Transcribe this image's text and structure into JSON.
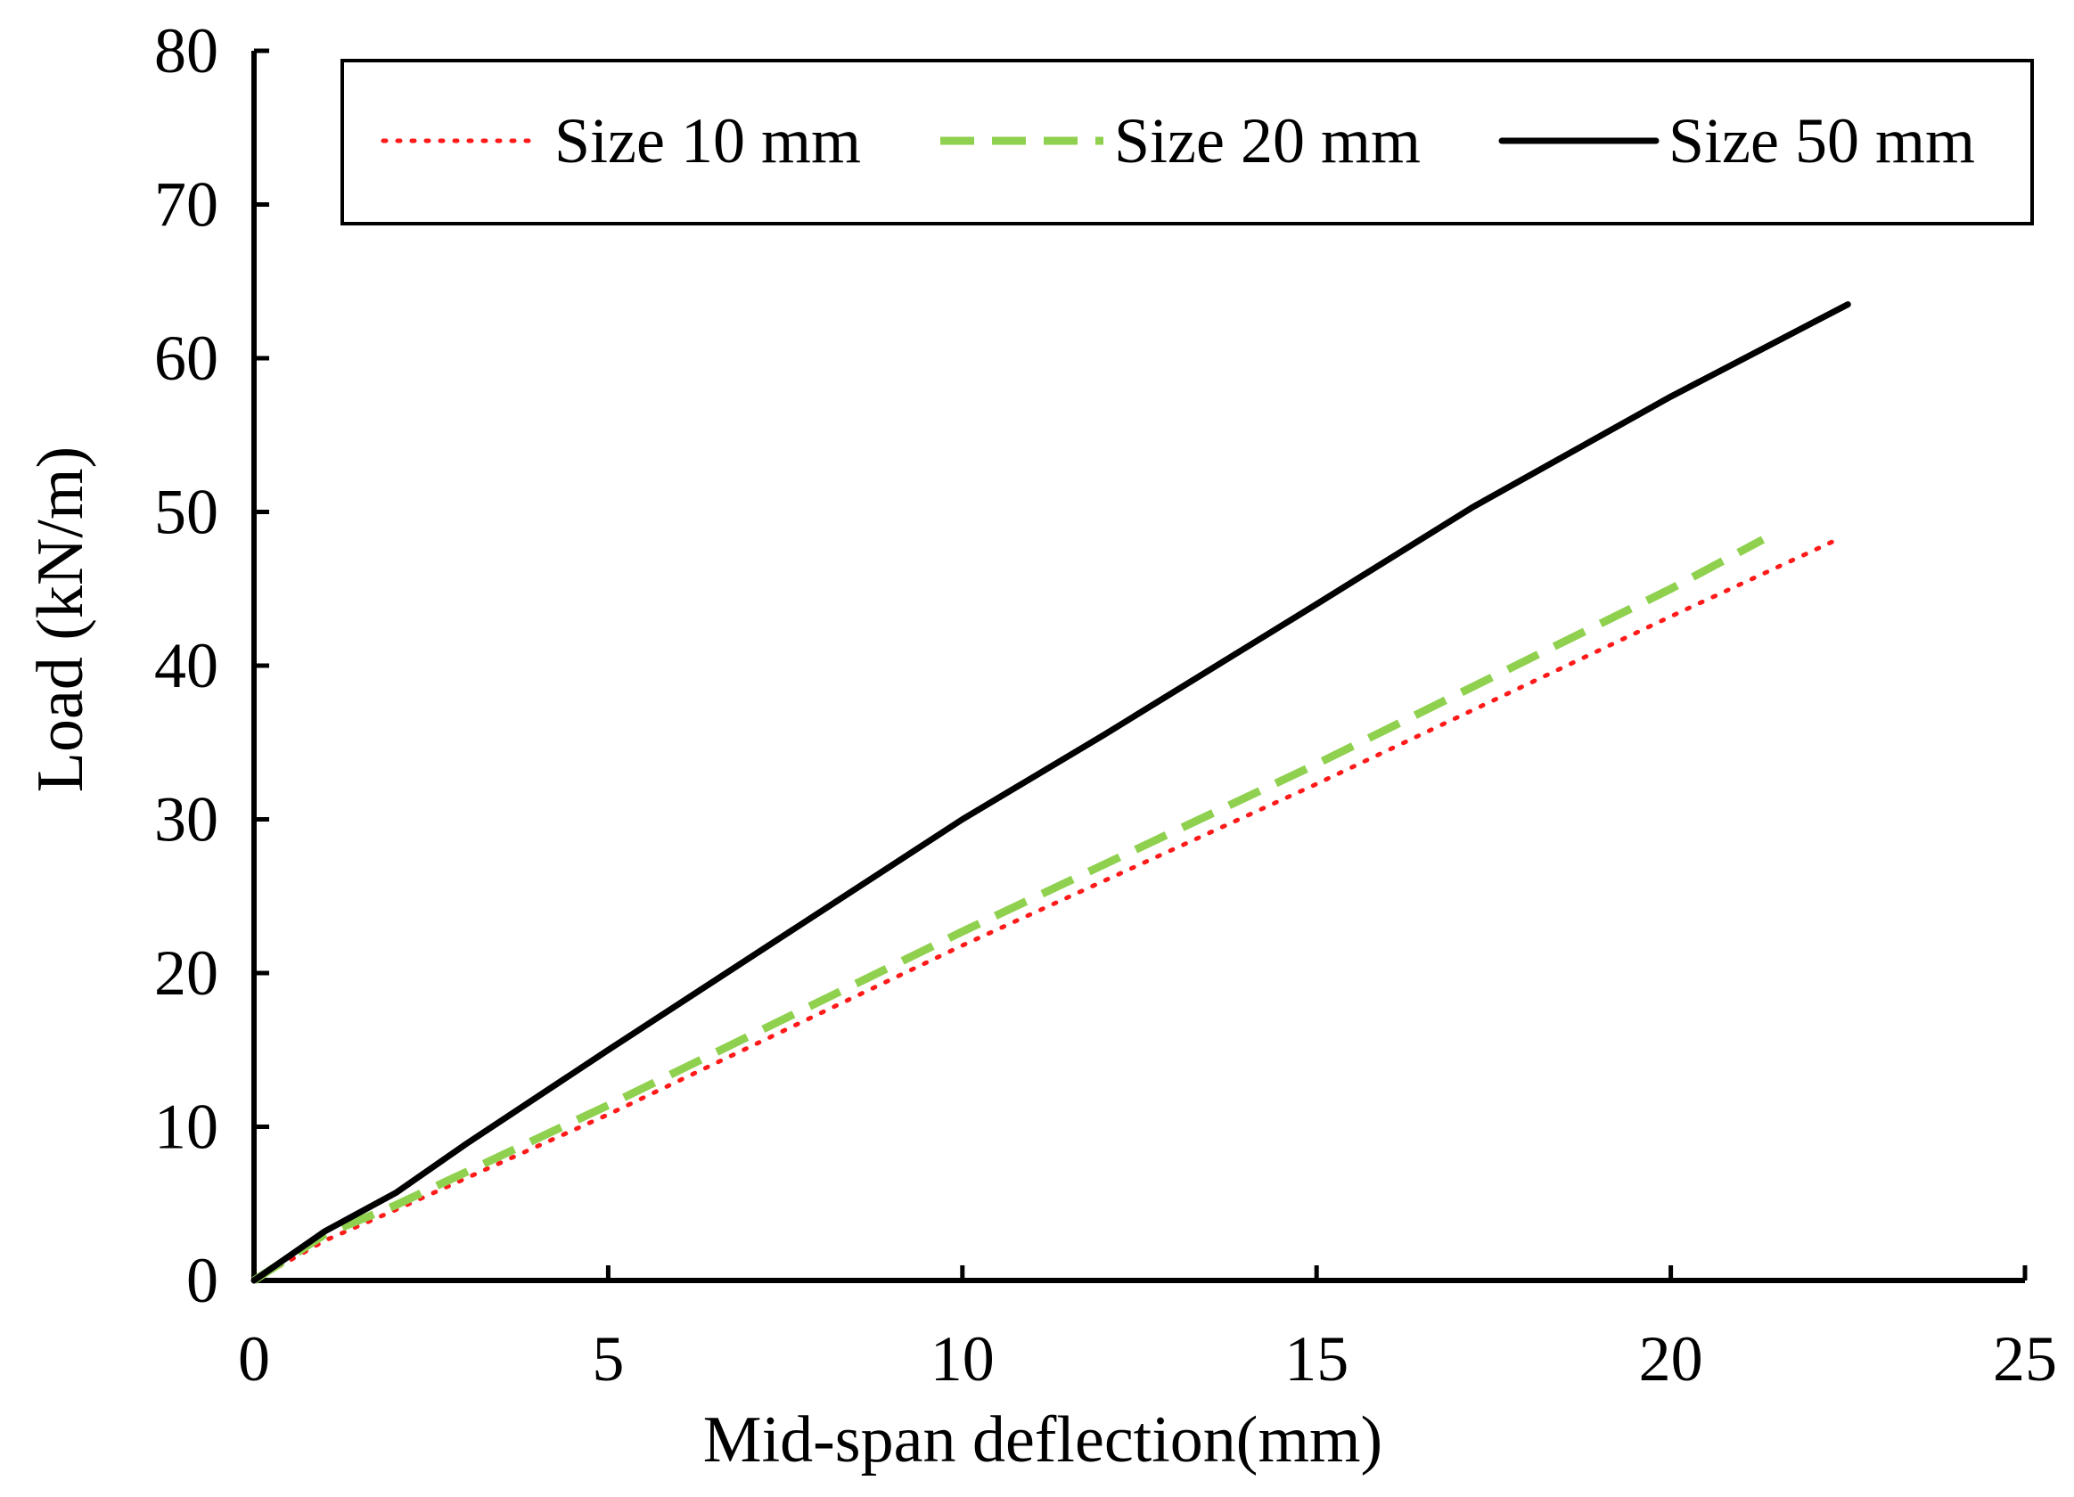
{
  "chart_data": {
    "type": "line",
    "title": "",
    "xlabel": "Mid-span deflection(mm)",
    "ylabel": "Load (kN/m)",
    "xlim": [
      0,
      25
    ],
    "ylim": [
      0,
      80
    ],
    "xticks": [
      0,
      5,
      10,
      15,
      20,
      25
    ],
    "yticks": [
      0,
      10,
      20,
      30,
      40,
      50,
      60,
      70,
      80
    ],
    "grid": false,
    "legend_position": "top",
    "series": [
      {
        "name": "Size 10 mm",
        "color": "#ff1a1a",
        "style": "dotted",
        "x": [
          0,
          1,
          2,
          5,
          10,
          15,
          20,
          22.3
        ],
        "y": [
          0,
          2.6,
          4.6,
          10.8,
          21.8,
          32.3,
          43.2,
          48.1
        ]
      },
      {
        "name": "Size 20 mm",
        "color": "#8fd14f",
        "style": "dashed",
        "x": [
          0,
          1,
          2,
          5,
          10,
          15,
          20,
          21.3
        ],
        "y": [
          0,
          3.0,
          4.9,
          11.4,
          22.7,
          33.6,
          45.0,
          48.2
        ]
      },
      {
        "name": "Size 50 mm",
        "color": "#000000",
        "style": "solid",
        "x": [
          0,
          1,
          2,
          3,
          5,
          10,
          12,
          15,
          17.2,
          20,
          22.5
        ],
        "y": [
          0,
          3.2,
          5.7,
          8.9,
          15.0,
          30.0,
          35.5,
          44.0,
          50.3,
          57.5,
          63.5
        ]
      }
    ]
  }
}
